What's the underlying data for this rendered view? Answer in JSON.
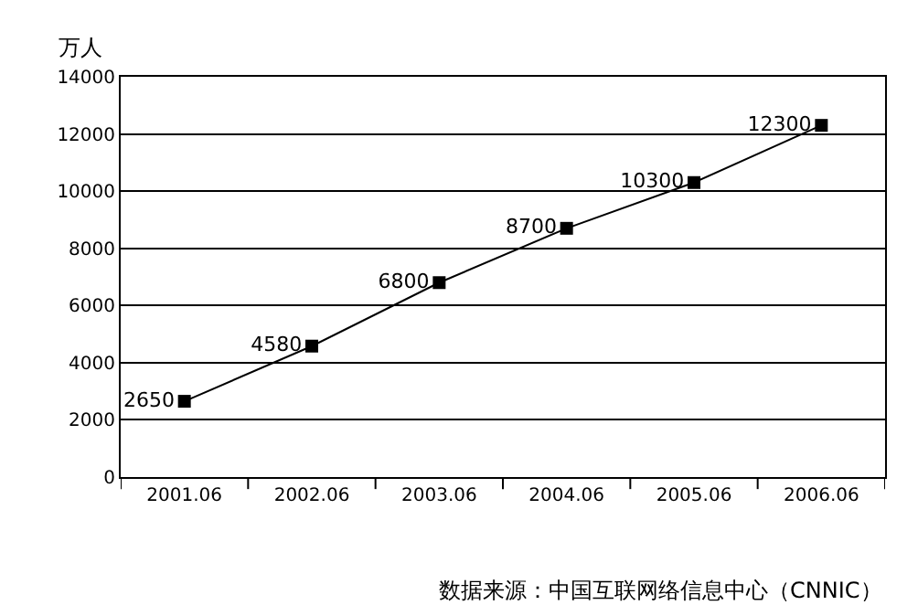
{
  "chart_data": {
    "type": "line",
    "ylabel": "万人",
    "categories": [
      "2001.06",
      "2002.06",
      "2003.06",
      "2004.06",
      "2005.06",
      "2006.06"
    ],
    "series": [
      {
        "color": "#000000",
        "values": [
          2650,
          4580,
          6800,
          8700,
          10300,
          12300
        ]
      }
    ],
    "ylim": [
      0,
      14000
    ],
    "yticks": [
      0,
      2000,
      4000,
      6000,
      8000,
      10000,
      12000,
      14000
    ],
    "grid": "y",
    "marker": "square",
    "line_style": "solid",
    "data_labels": true,
    "annotations": [
      "数据来源：中国互联网络信息中心（CNNIC）"
    ]
  }
}
